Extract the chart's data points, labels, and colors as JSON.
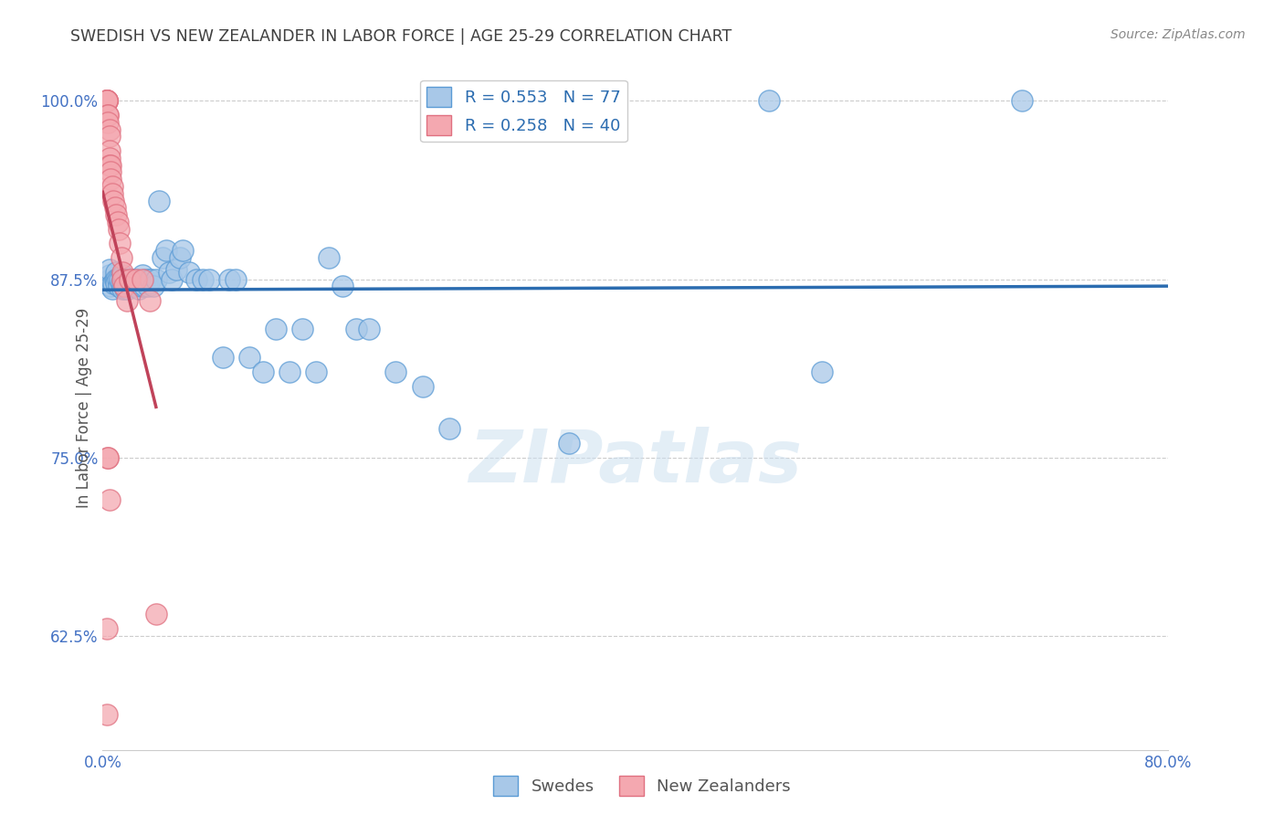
{
  "title": "SWEDISH VS NEW ZEALANDER IN LABOR FORCE | AGE 25-29 CORRELATION CHART",
  "source": "Source: ZipAtlas.com",
  "ylabel": "In Labor Force | Age 25-29",
  "xlim": [
    0.0,
    0.8
  ],
  "ylim": [
    0.545,
    1.025
  ],
  "xticks": [
    0.0,
    0.1,
    0.2,
    0.3,
    0.4,
    0.5,
    0.6,
    0.7,
    0.8
  ],
  "xticklabels": [
    "0.0%",
    "",
    "",
    "",
    "",
    "",
    "",
    "",
    "80.0%"
  ],
  "yticks": [
    0.625,
    0.75,
    0.875,
    1.0
  ],
  "yticklabels": [
    "62.5%",
    "75.0%",
    "87.5%",
    "100.0%"
  ],
  "legend_blue_label": "R = 0.553   N = 77",
  "legend_pink_label": "R = 0.258   N = 40",
  "legend_swedes": "Swedes",
  "legend_nz": "New Zealanders",
  "blue_color": "#a8c8e8",
  "pink_color": "#f4a8b0",
  "blue_edge_color": "#5b9bd5",
  "pink_edge_color": "#e07080",
  "blue_line_color": "#2b6cb0",
  "pink_line_color": "#c0435a",
  "watermark": "ZIPatlas",
  "swedes_x": [
    0.005,
    0.005,
    0.005,
    0.006,
    0.007,
    0.008,
    0.009,
    0.01,
    0.01,
    0.01,
    0.011,
    0.012,
    0.013,
    0.014,
    0.015,
    0.015,
    0.016,
    0.016,
    0.017,
    0.017,
    0.018,
    0.018,
    0.019,
    0.019,
    0.02,
    0.02,
    0.021,
    0.022,
    0.023,
    0.024,
    0.025,
    0.025,
    0.026,
    0.027,
    0.028,
    0.029,
    0.03,
    0.031,
    0.032,
    0.033,
    0.034,
    0.035,
    0.036,
    0.038,
    0.04,
    0.042,
    0.045,
    0.048,
    0.05,
    0.052,
    0.055,
    0.058,
    0.06,
    0.065,
    0.07,
    0.075,
    0.08,
    0.09,
    0.095,
    0.1,
    0.11,
    0.12,
    0.13,
    0.14,
    0.15,
    0.16,
    0.17,
    0.18,
    0.19,
    0.2,
    0.22,
    0.24,
    0.26,
    0.35,
    0.5,
    0.54,
    0.69
  ],
  "swedes_y": [
    0.875,
    0.878,
    0.882,
    0.87,
    0.868,
    0.872,
    0.875,
    0.88,
    0.875,
    0.872,
    0.875,
    0.87,
    0.875,
    0.872,
    0.878,
    0.868,
    0.875,
    0.87,
    0.875,
    0.868,
    0.872,
    0.875,
    0.87,
    0.868,
    0.872,
    0.875,
    0.87,
    0.875,
    0.87,
    0.875,
    0.875,
    0.87,
    0.875,
    0.868,
    0.872,
    0.87,
    0.878,
    0.87,
    0.875,
    0.872,
    0.87,
    0.875,
    0.875,
    0.87,
    0.875,
    0.93,
    0.89,
    0.895,
    0.88,
    0.875,
    0.882,
    0.89,
    0.895,
    0.88,
    0.875,
    0.875,
    0.875,
    0.82,
    0.875,
    0.875,
    0.82,
    0.81,
    0.84,
    0.81,
    0.84,
    0.81,
    0.89,
    0.87,
    0.84,
    0.84,
    0.81,
    0.8,
    0.77,
    0.76,
    1.0,
    0.81,
    1.0
  ],
  "nz_x": [
    0.003,
    0.003,
    0.003,
    0.003,
    0.003,
    0.003,
    0.004,
    0.004,
    0.004,
    0.005,
    0.005,
    0.005,
    0.005,
    0.005,
    0.006,
    0.006,
    0.006,
    0.007,
    0.007,
    0.008,
    0.009,
    0.01,
    0.011,
    0.012,
    0.013,
    0.014,
    0.015,
    0.015,
    0.016,
    0.018,
    0.02,
    0.025,
    0.03,
    0.035,
    0.04,
    0.003,
    0.003,
    0.004,
    0.004,
    0.005
  ],
  "nz_y": [
    1.0,
    1.0,
    1.0,
    1.0,
    1.0,
    1.0,
    0.99,
    0.99,
    0.985,
    0.98,
    0.975,
    0.965,
    0.96,
    0.955,
    0.955,
    0.95,
    0.945,
    0.94,
    0.935,
    0.93,
    0.925,
    0.92,
    0.915,
    0.91,
    0.9,
    0.89,
    0.88,
    0.875,
    0.87,
    0.86,
    0.875,
    0.875,
    0.875,
    0.86,
    0.64,
    0.63,
    0.57,
    0.75,
    0.75,
    0.72
  ]
}
